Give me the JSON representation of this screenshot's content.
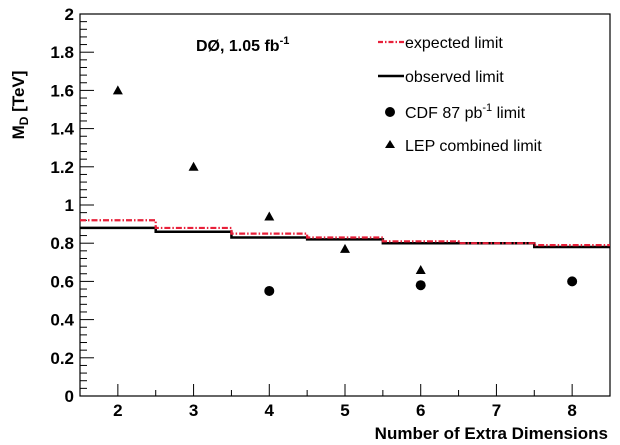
{
  "chart_data": {
    "type": "line",
    "title": "",
    "annotation": {
      "main": "DØ, 1.05 fb",
      "sup": "-1"
    },
    "xlabel": "Number of Extra Dimensions",
    "ylabel": {
      "main": "M",
      "sub": "D",
      "unit": " [TeV]"
    },
    "xlim": [
      1.5,
      8.5
    ],
    "ylim": [
      0,
      2
    ],
    "x_ticks": [
      2,
      3,
      4,
      5,
      6,
      7,
      8
    ],
    "y_ticks": [
      0,
      0.2,
      0.4,
      0.6,
      0.8,
      1,
      1.2,
      1.4,
      1.6,
      1.8,
      2
    ],
    "y_tick_labels": [
      "0",
      "0.2",
      "0.4",
      "0.6",
      "0.8",
      "1",
      "1.2",
      "1.4",
      "1.6",
      "1.8",
      "2"
    ],
    "series": [
      {
        "name": "expected limit",
        "style": "step-dash-dot",
        "color": "#e8203a",
        "x": [
          2,
          3,
          4,
          5,
          6,
          7,
          8
        ],
        "y": [
          0.92,
          0.88,
          0.85,
          0.83,
          0.81,
          0.8,
          0.79
        ]
      },
      {
        "name": "observed limit",
        "style": "step-solid",
        "color": "#000000",
        "x": [
          2,
          3,
          4,
          5,
          6,
          7,
          8
        ],
        "y": [
          0.88,
          0.86,
          0.83,
          0.82,
          0.8,
          0.8,
          0.78
        ]
      },
      {
        "name": "CDF 87 pb-1 limit",
        "style": "circle",
        "color": "#000000",
        "x": [
          4,
          6,
          8
        ],
        "y": [
          0.55,
          0.58,
          0.6
        ]
      },
      {
        "name": "LEP combined limit",
        "style": "triangle",
        "color": "#000000",
        "x": [
          2,
          3,
          4,
          5,
          6
        ],
        "y": [
          1.6,
          1.2,
          0.94,
          0.77,
          0.66
        ]
      }
    ],
    "legend": {
      "placement": "top-right",
      "entries": [
        {
          "text": "expected limit",
          "sup": ""
        },
        {
          "text": "observed limit",
          "sup": ""
        },
        {
          "text": "CDF 87 pb",
          "sup": "-1",
          "after": " limit"
        },
        {
          "text": "LEP combined limit",
          "sup": ""
        }
      ]
    },
    "grid": false
  }
}
